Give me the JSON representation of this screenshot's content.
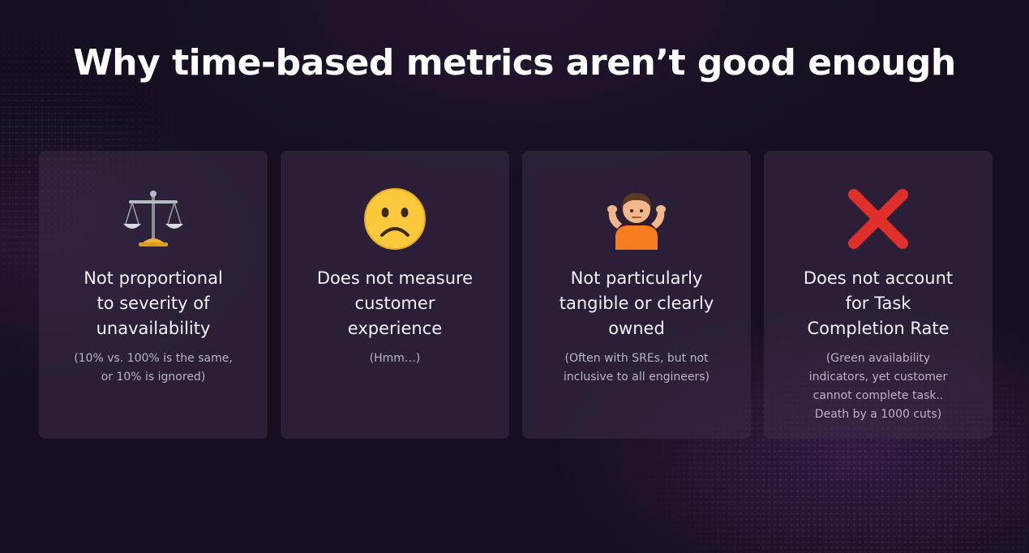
{
  "slide": {
    "title": "Why time-based metrics aren’t good enough"
  },
  "cards": [
    {
      "icon": "balance-scale-icon",
      "heading": "Not proportional\nto severity of\nunavailability",
      "note": "(10% vs. 100% is the same,\nor 10% is ignored)"
    },
    {
      "icon": "frowning-face-icon",
      "heading": "Does not measure\ncustomer\nexperience",
      "note": "(Hmm…)"
    },
    {
      "icon": "shrugging-person-icon",
      "heading": "Not particularly\ntangible or clearly\nowned",
      "note": "(Often with SREs, but not\ninclusive to all engineers)"
    },
    {
      "icon": "cross-mark-icon",
      "heading": "Does not account\nfor Task\nCompletion Rate",
      "note": "(Green availability\nindicators, yet customer\ncannot complete task..\nDeath by a 1000 cuts)"
    }
  ],
  "colors": {
    "background": "#170f21",
    "card": "#3a2e48",
    "title": "#ffffff",
    "cross": "#e0302b",
    "face": "#fbc93b"
  }
}
